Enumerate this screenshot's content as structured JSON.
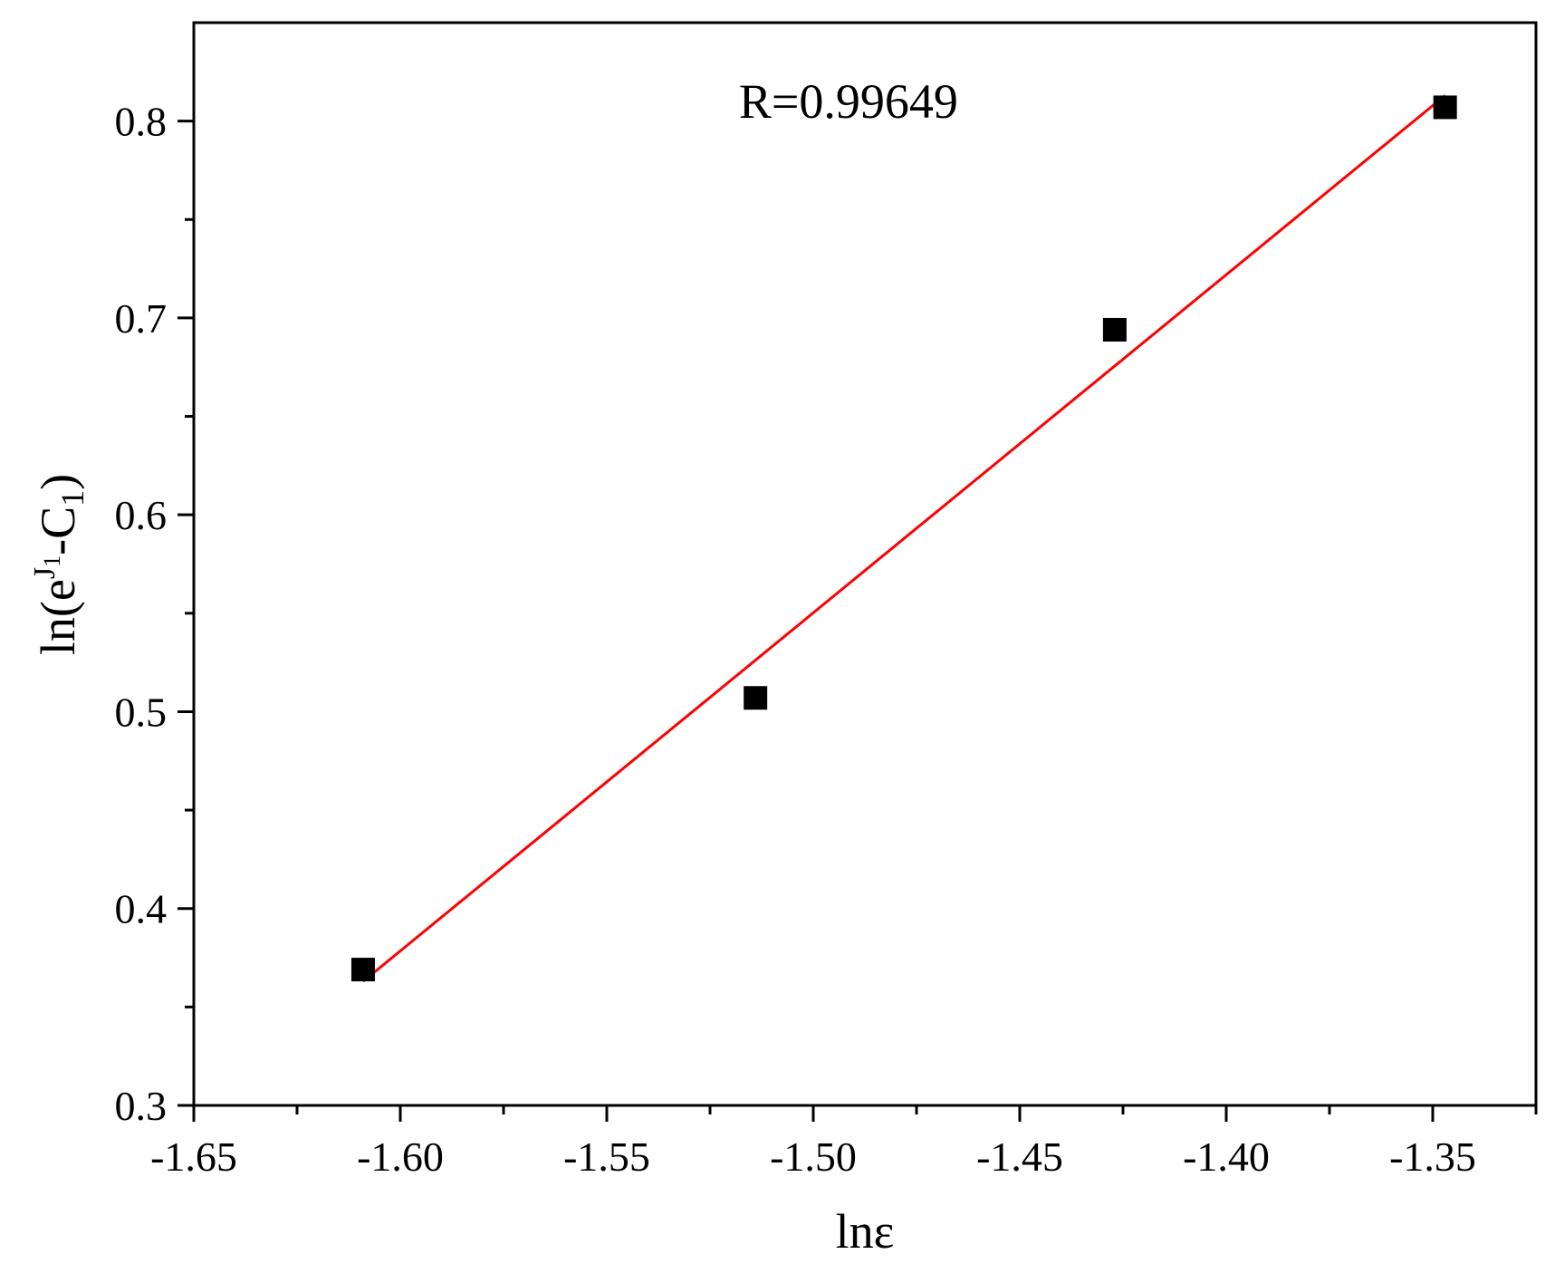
{
  "chart_data": {
    "type": "scatter",
    "xlabel": "lnε",
    "ylabel": {
      "prefix": "ln(e",
      "superscript": "J",
      "superscript_sub": "1",
      "middle": "-C",
      "subscript": "1",
      "suffix": ")"
    },
    "xlim": [
      -1.65,
      -1.325
    ],
    "ylim": [
      0.3,
      0.85
    ],
    "xticks": [
      -1.65,
      -1.6,
      -1.55,
      -1.5,
      -1.45,
      -1.4,
      -1.35
    ],
    "xtick_labels": [
      "-1.65",
      "-1.60",
      "-1.55",
      "-1.50",
      "-1.45",
      "-1.40",
      "-1.35"
    ],
    "xminor_ticks": [
      -1.625,
      -1.575,
      -1.525,
      -1.475,
      -1.425,
      -1.375,
      -1.325
    ],
    "yticks": [
      0.3,
      0.4,
      0.5,
      0.6,
      0.7,
      0.8
    ],
    "ytick_labels": [
      "0.3",
      "0.4",
      "0.5",
      "0.6",
      "0.7",
      "0.8"
    ],
    "yminor_ticks": [
      0.35,
      0.45,
      0.55,
      0.65,
      0.75
    ],
    "series": [
      {
        "marker": "square",
        "color": "#000000",
        "points": [
          {
            "x": -1.609,
            "y": 0.369
          },
          {
            "x": -1.514,
            "y": 0.507
          },
          {
            "x": -1.427,
            "y": 0.694
          },
          {
            "x": -1.347,
            "y": 0.807
          }
        ]
      }
    ],
    "fit_line": {
      "color": "#ff0000",
      "x": [
        -1.609,
        -1.347
      ],
      "y": [
        0.363,
        0.813
      ]
    },
    "annotations": [
      {
        "text": "R=0.99649",
        "x": -1.518,
        "y": 0.81
      }
    ],
    "grid": false,
    "legend": "none"
  }
}
